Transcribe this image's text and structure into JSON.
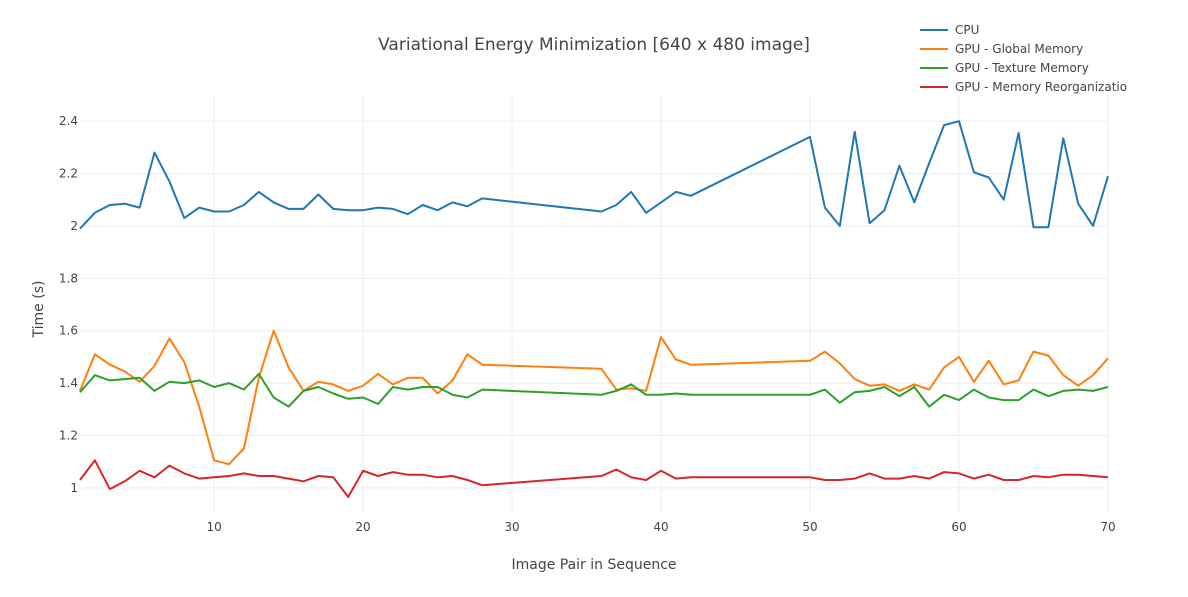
{
  "chart_data": {
    "type": "line",
    "title": "Variational Energy Minimization [640 x 480 image]",
    "xlabel": "Image Pair in Sequence",
    "ylabel": "Time (s)",
    "xlim": [
      1,
      70
    ],
    "ylim": [
      0.9,
      2.5
    ],
    "xticks": [
      10,
      20,
      30,
      40,
      50,
      60,
      70
    ],
    "yticks": [
      1,
      1.2,
      1.4,
      1.6,
      1.8,
      2,
      2.2,
      2.4
    ],
    "ytick_labels": [
      "1",
      "1.2",
      "1.4",
      "1.6",
      "1.8",
      "2",
      "2.2",
      "2.4"
    ],
    "grid": true,
    "legend_position": "top-right",
    "series": [
      {
        "name": "CPU",
        "color": "#1f77b4",
        "x": [
          1,
          2,
          3,
          4,
          5,
          6,
          7,
          8,
          9,
          10,
          11,
          12,
          13,
          14,
          15,
          16,
          17,
          18,
          19,
          20,
          21,
          22,
          23,
          24,
          25,
          26,
          27,
          28,
          36,
          37,
          38,
          39,
          40,
          41,
          42,
          50,
          51,
          52,
          53,
          54,
          55,
          56,
          57,
          58,
          59,
          60,
          61,
          62,
          63,
          64,
          65,
          66,
          67,
          68,
          69,
          70
        ],
        "y": [
          1.99,
          2.05,
          2.08,
          2.085,
          2.07,
          2.28,
          2.17,
          2.03,
          2.07,
          2.055,
          2.055,
          2.08,
          2.13,
          2.09,
          2.065,
          2.065,
          2.12,
          2.065,
          2.06,
          2.06,
          2.07,
          2.065,
          2.045,
          2.08,
          2.06,
          2.09,
          2.075,
          2.105,
          2.055,
          2.08,
          2.13,
          2.05,
          2.09,
          2.13,
          2.115,
          2.34,
          2.07,
          2.0,
          2.36,
          2.01,
          2.06,
          2.23,
          2.09,
          2.24,
          2.385,
          2.4,
          2.205,
          2.185,
          2.1,
          2.355,
          1.995,
          1.995,
          2.335,
          2.085,
          2.0,
          2.19
        ]
      },
      {
        "name": "GPU - Global Memory",
        "color": "#ff7f0e",
        "x": [
          1,
          2,
          3,
          4,
          5,
          6,
          7,
          8,
          9,
          10,
          11,
          12,
          13,
          14,
          15,
          16,
          17,
          18,
          19,
          20,
          21,
          22,
          23,
          24,
          25,
          26,
          27,
          28,
          36,
          37,
          38,
          39,
          40,
          41,
          42,
          50,
          51,
          52,
          53,
          54,
          55,
          56,
          57,
          58,
          59,
          60,
          61,
          62,
          63,
          64,
          65,
          66,
          67,
          68,
          69,
          70
        ],
        "y": [
          1.37,
          1.51,
          1.47,
          1.445,
          1.405,
          1.465,
          1.57,
          1.48,
          1.31,
          1.105,
          1.09,
          1.15,
          1.42,
          1.6,
          1.46,
          1.37,
          1.405,
          1.395,
          1.37,
          1.39,
          1.435,
          1.395,
          1.42,
          1.42,
          1.36,
          1.41,
          1.51,
          1.47,
          1.455,
          1.375,
          1.38,
          1.37,
          1.575,
          1.49,
          1.47,
          1.485,
          1.52,
          1.475,
          1.415,
          1.39,
          1.395,
          1.37,
          1.395,
          1.375,
          1.46,
          1.5,
          1.405,
          1.485,
          1.395,
          1.41,
          1.52,
          1.505,
          1.43,
          1.39,
          1.43,
          1.495
        ]
      },
      {
        "name": "GPU - Texture Memory",
        "color": "#2ca02c",
        "x": [
          1,
          2,
          3,
          4,
          5,
          6,
          7,
          8,
          9,
          10,
          11,
          12,
          13,
          14,
          15,
          16,
          17,
          18,
          19,
          20,
          21,
          22,
          23,
          24,
          25,
          26,
          27,
          28,
          36,
          37,
          38,
          39,
          40,
          41,
          42,
          50,
          51,
          52,
          53,
          54,
          55,
          56,
          57,
          58,
          59,
          60,
          61,
          62,
          63,
          64,
          65,
          66,
          67,
          68,
          69,
          70
        ],
        "y": [
          1.365,
          1.43,
          1.41,
          1.415,
          1.42,
          1.37,
          1.405,
          1.4,
          1.41,
          1.385,
          1.4,
          1.375,
          1.435,
          1.345,
          1.31,
          1.37,
          1.385,
          1.36,
          1.34,
          1.345,
          1.32,
          1.385,
          1.375,
          1.385,
          1.385,
          1.355,
          1.345,
          1.375,
          1.355,
          1.37,
          1.395,
          1.355,
          1.355,
          1.36,
          1.355,
          1.355,
          1.375,
          1.325,
          1.365,
          1.37,
          1.385,
          1.35,
          1.385,
          1.31,
          1.355,
          1.335,
          1.375,
          1.345,
          1.335,
          1.335,
          1.375,
          1.35,
          1.37,
          1.375,
          1.37,
          1.385
        ]
      },
      {
        "name": "GPU - Memory Reorganizatio",
        "color": "#d62728",
        "x": [
          1,
          2,
          3,
          4,
          5,
          6,
          7,
          8,
          9,
          10,
          11,
          12,
          13,
          14,
          15,
          16,
          17,
          18,
          19,
          20,
          21,
          22,
          23,
          24,
          25,
          26,
          27,
          28,
          36,
          37,
          38,
          39,
          40,
          41,
          42,
          50,
          51,
          52,
          53,
          54,
          55,
          56,
          57,
          58,
          59,
          60,
          61,
          62,
          63,
          64,
          65,
          66,
          67,
          68,
          69,
          70
        ],
        "y": [
          1.03,
          1.105,
          0.995,
          1.025,
          1.065,
          1.04,
          1.085,
          1.055,
          1.035,
          1.04,
          1.045,
          1.055,
          1.045,
          1.045,
          1.035,
          1.025,
          1.045,
          1.04,
          0.965,
          1.065,
          1.045,
          1.06,
          1.05,
          1.05,
          1.04,
          1.045,
          1.03,
          1.01,
          1.045,
          1.07,
          1.04,
          1.03,
          1.065,
          1.035,
          1.04,
          1.04,
          1.03,
          1.03,
          1.035,
          1.055,
          1.035,
          1.035,
          1.045,
          1.035,
          1.06,
          1.055,
          1.035,
          1.05,
          1.03,
          1.03,
          1.045,
          1.04,
          1.05,
          1.05,
          1.045,
          1.04
        ]
      }
    ]
  }
}
